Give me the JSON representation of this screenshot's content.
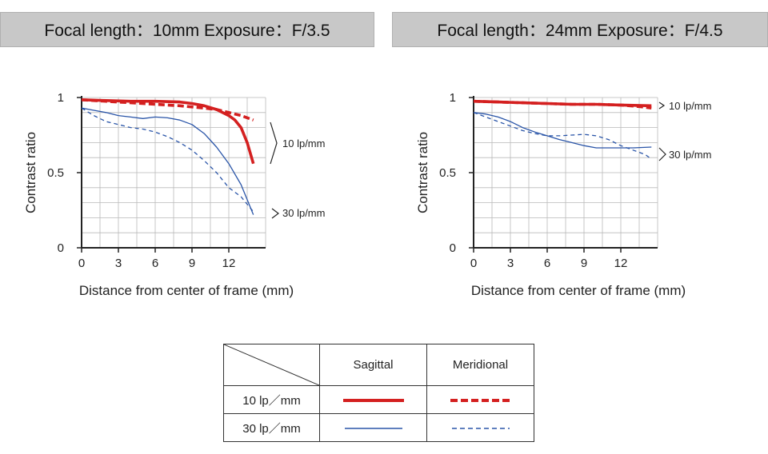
{
  "headers": {
    "left": "Focal length：10mm   Exposure：F/3.5",
    "right": "Focal length：24mm   Exposure：F/4.5"
  },
  "colors": {
    "red": "#d42020",
    "blue": "#2a55a8",
    "header_bg": "#c8c8c8"
  },
  "chart_data": [
    {
      "type": "line",
      "title": "Focal length：10mm   Exposure：F/3.5",
      "xlabel": "Distance from center of frame (mm)",
      "ylabel": "Contrast ratio",
      "xlim": [
        0,
        15
      ],
      "ylim": [
        0,
        1
      ],
      "x_ticks": [
        "0",
        "3",
        "6",
        "9",
        "12"
      ],
      "y_ticks": [
        "0",
        "0.5",
        "1"
      ],
      "grid": true,
      "annotations": [
        "10 lp/mm",
        "30 lp/mm"
      ],
      "series": [
        {
          "name": "10 lp/mm Sagittal",
          "style": "solid-thick",
          "color": "#d42020",
          "x": [
            0,
            2,
            4,
            6,
            8,
            9,
            10,
            11,
            12,
            12.5,
            13,
            13.5,
            14
          ],
          "y": [
            0.985,
            0.98,
            0.975,
            0.975,
            0.97,
            0.96,
            0.945,
            0.92,
            0.88,
            0.85,
            0.8,
            0.7,
            0.56
          ]
        },
        {
          "name": "10 lp/mm Meridional",
          "style": "dashed-thick",
          "color": "#d42020",
          "x": [
            0,
            2,
            4,
            6,
            8,
            10,
            11,
            12,
            13,
            14
          ],
          "y": [
            0.985,
            0.975,
            0.965,
            0.955,
            0.945,
            0.93,
            0.92,
            0.9,
            0.88,
            0.85
          ]
        },
        {
          "name": "30 lp/mm Sagittal",
          "style": "solid-thin",
          "color": "#2a55a8",
          "x": [
            0,
            1,
            2,
            3,
            4,
            5,
            6,
            7,
            8,
            9,
            10,
            11,
            12,
            13,
            14
          ],
          "y": [
            0.93,
            0.915,
            0.9,
            0.88,
            0.87,
            0.86,
            0.87,
            0.865,
            0.85,
            0.82,
            0.76,
            0.67,
            0.56,
            0.42,
            0.22
          ]
        },
        {
          "name": "30 lp/mm Meridional",
          "style": "dashed-thin",
          "color": "#2a55a8",
          "x": [
            0,
            1,
            2,
            3,
            4,
            5,
            6,
            7,
            8,
            9,
            10,
            11,
            12,
            13,
            14
          ],
          "y": [
            0.93,
            0.88,
            0.84,
            0.82,
            0.8,
            0.79,
            0.77,
            0.74,
            0.7,
            0.65,
            0.58,
            0.5,
            0.4,
            0.34,
            0.24
          ]
        }
      ]
    },
    {
      "type": "line",
      "title": "Focal length：24mm   Exposure：F/4.5",
      "xlabel": "Distance from center of frame (mm)",
      "ylabel": "Contrast ratio",
      "xlim": [
        0,
        15
      ],
      "ylim": [
        0,
        1
      ],
      "x_ticks": [
        "0",
        "3",
        "6",
        "9",
        "12"
      ],
      "y_ticks": [
        "0",
        "0.5",
        "1"
      ],
      "grid": true,
      "annotations": [
        "10 lp/mm",
        "30 lp/mm"
      ],
      "series": [
        {
          "name": "10 lp/mm Sagittal",
          "style": "solid-thick",
          "color": "#d42020",
          "x": [
            0,
            2,
            4,
            6,
            8,
            10,
            12,
            14.5
          ],
          "y": [
            0.975,
            0.97,
            0.965,
            0.96,
            0.955,
            0.955,
            0.95,
            0.945
          ]
        },
        {
          "name": "10 lp/mm Meridional",
          "style": "dashed-thick",
          "color": "#d42020",
          "x": [
            0,
            2,
            4,
            6,
            8,
            10,
            12,
            13.5,
            14.5
          ],
          "y": [
            0.975,
            0.97,
            0.965,
            0.96,
            0.955,
            0.955,
            0.95,
            0.94,
            0.93
          ]
        },
        {
          "name": "30 lp/mm Sagittal",
          "style": "solid-thin",
          "color": "#2a55a8",
          "x": [
            0,
            1,
            2,
            3,
            4,
            5,
            6,
            7,
            8,
            9,
            10,
            11,
            12,
            13,
            14.5
          ],
          "y": [
            0.9,
            0.89,
            0.87,
            0.84,
            0.8,
            0.77,
            0.745,
            0.72,
            0.7,
            0.68,
            0.665,
            0.665,
            0.665,
            0.665,
            0.67
          ]
        },
        {
          "name": "30 lp/mm Meridional",
          "style": "dashed-thin",
          "color": "#2a55a8",
          "x": [
            0,
            1,
            2,
            3,
            4,
            5,
            6,
            7,
            8,
            9,
            10,
            11,
            12,
            13,
            14,
            14.5
          ],
          "y": [
            0.9,
            0.87,
            0.84,
            0.81,
            0.78,
            0.76,
            0.745,
            0.745,
            0.75,
            0.755,
            0.745,
            0.72,
            0.68,
            0.65,
            0.62,
            0.59
          ]
        }
      ]
    }
  ],
  "legend": {
    "columns": [
      "Sagittal",
      "Meridional"
    ],
    "rows": [
      {
        "label": "10 lp／mm",
        "sagittal_style": "solid-thick",
        "meridional_style": "dashed-thick",
        "color": "#d42020"
      },
      {
        "label": "30 lp／mm",
        "sagittal_style": "solid-thin",
        "meridional_style": "dashed-thin",
        "color": "#2a55a8"
      }
    ]
  }
}
